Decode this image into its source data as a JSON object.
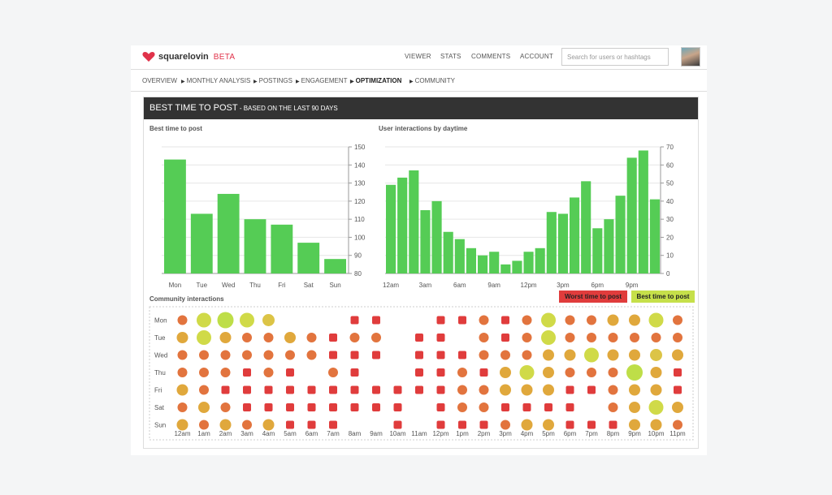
{
  "brand": {
    "name": "squarelovin",
    "tag": "BETA"
  },
  "topnav": [
    "VIEWER",
    "STATS",
    "COMMENTS",
    "ACCOUNT"
  ],
  "search": {
    "placeholder": "Search for users or hashtags"
  },
  "subnav": [
    {
      "label": "OVERVIEW",
      "active": false
    },
    {
      "label": "MONTHLY ANALYSIS",
      "active": false
    },
    {
      "label": "POSTINGS",
      "active": false
    },
    {
      "label": "ENGAGEMENT",
      "active": false
    },
    {
      "label": "OPTIMIZATION",
      "active": true
    },
    {
      "label": "COMMUNITY",
      "active": false
    }
  ],
  "panel": {
    "title": "BEST TIME TO POST",
    "subtitle": " - BASED ON THE LAST 90 DAYS"
  },
  "legend": {
    "worst": "Worst time to post",
    "best": "Best time to post"
  },
  "colors": {
    "bar": "#55cc55",
    "worst": "#e03c3c",
    "best": "#c6e04a",
    "header": "#333333",
    "brand": "#e0324a"
  },
  "chart_data": [
    {
      "type": "bar",
      "title": "Best time to post",
      "categories": [
        "Mon",
        "Tue",
        "Wed",
        "Thu",
        "Fri",
        "Sat",
        "Sun"
      ],
      "values": [
        143,
        113,
        124,
        110,
        107,
        97,
        88
      ],
      "ylim": [
        80,
        150
      ],
      "yticks": [
        80,
        90,
        100,
        110,
        120,
        130,
        140,
        150
      ],
      "grid": true
    },
    {
      "type": "bar",
      "title": "User interactions by daytime",
      "categories": [
        "12am",
        "1am",
        "2am",
        "3am",
        "4am",
        "5am",
        "6am",
        "7am",
        "8am",
        "9am",
        "10am",
        "11am",
        "12pm",
        "1pm",
        "2pm",
        "3pm",
        "4pm",
        "5pm",
        "6pm",
        "7pm",
        "8pm",
        "9pm",
        "10pm",
        "11pm"
      ],
      "xticklabels": [
        "12am",
        "3am",
        "6am",
        "9am",
        "12pm",
        "3pm",
        "6pm",
        "9pm"
      ],
      "values": [
        49,
        53,
        57,
        35,
        40,
        23,
        19,
        14,
        10,
        12,
        5,
        7,
        12,
        14,
        34,
        33,
        42,
        51,
        25,
        30,
        43,
        64,
        68,
        41
      ],
      "ylim": [
        0,
        70
      ],
      "yticks": [
        0,
        10,
        20,
        30,
        40,
        50,
        60,
        70
      ],
      "grid": true
    },
    {
      "type": "heatmap",
      "title": "Community interactions",
      "rows": [
        "Mon",
        "Tue",
        "Wed",
        "Thu",
        "Fri",
        "Sat",
        "Sun"
      ],
      "columns": [
        "12am",
        "1am",
        "2am",
        "3am",
        "4am",
        "5am",
        "6am",
        "7am",
        "8am",
        "9am",
        "10am",
        "11am",
        "12pm",
        "1pm",
        "2pm",
        "3pm",
        "4pm",
        "5pm",
        "6pm",
        "7pm",
        "8pm",
        "9pm",
        "10pm",
        "11pm"
      ],
      "scale": "0 = no activity, 1 = worst, 7 = best",
      "values": [
        [
          3,
          6,
          7,
          6,
          5,
          0,
          0,
          0,
          1,
          1,
          0,
          0,
          1,
          1,
          3,
          1,
          3,
          6,
          3,
          3,
          4,
          4,
          6,
          3
        ],
        [
          4,
          6,
          4,
          3,
          3,
          4,
          3,
          1,
          3,
          3,
          0,
          1,
          1,
          0,
          3,
          1,
          3,
          6,
          3,
          3,
          3,
          3,
          3,
          3
        ],
        [
          3,
          3,
          3,
          3,
          3,
          3,
          3,
          1,
          1,
          1,
          0,
          1,
          1,
          1,
          3,
          3,
          3,
          4,
          4,
          6,
          4,
          4,
          5,
          4
        ],
        [
          3,
          3,
          3,
          1,
          3,
          1,
          0,
          3,
          1,
          0,
          0,
          1,
          1,
          3,
          1,
          4,
          6,
          4,
          3,
          3,
          3,
          7,
          4,
          1
        ],
        [
          4,
          3,
          1,
          1,
          1,
          1,
          1,
          1,
          1,
          1,
          1,
          1,
          1,
          3,
          3,
          4,
          4,
          4,
          1,
          1,
          3,
          4,
          4,
          1
        ],
        [
          3,
          4,
          3,
          1,
          1,
          1,
          1,
          1,
          1,
          1,
          1,
          0,
          1,
          3,
          3,
          1,
          1,
          1,
          1,
          0,
          3,
          4,
          6,
          4
        ],
        [
          4,
          3,
          4,
          3,
          4,
          1,
          1,
          1,
          0,
          0,
          1,
          0,
          1,
          1,
          1,
          3,
          4,
          4,
          1,
          1,
          1,
          4,
          4,
          3
        ]
      ]
    }
  ]
}
